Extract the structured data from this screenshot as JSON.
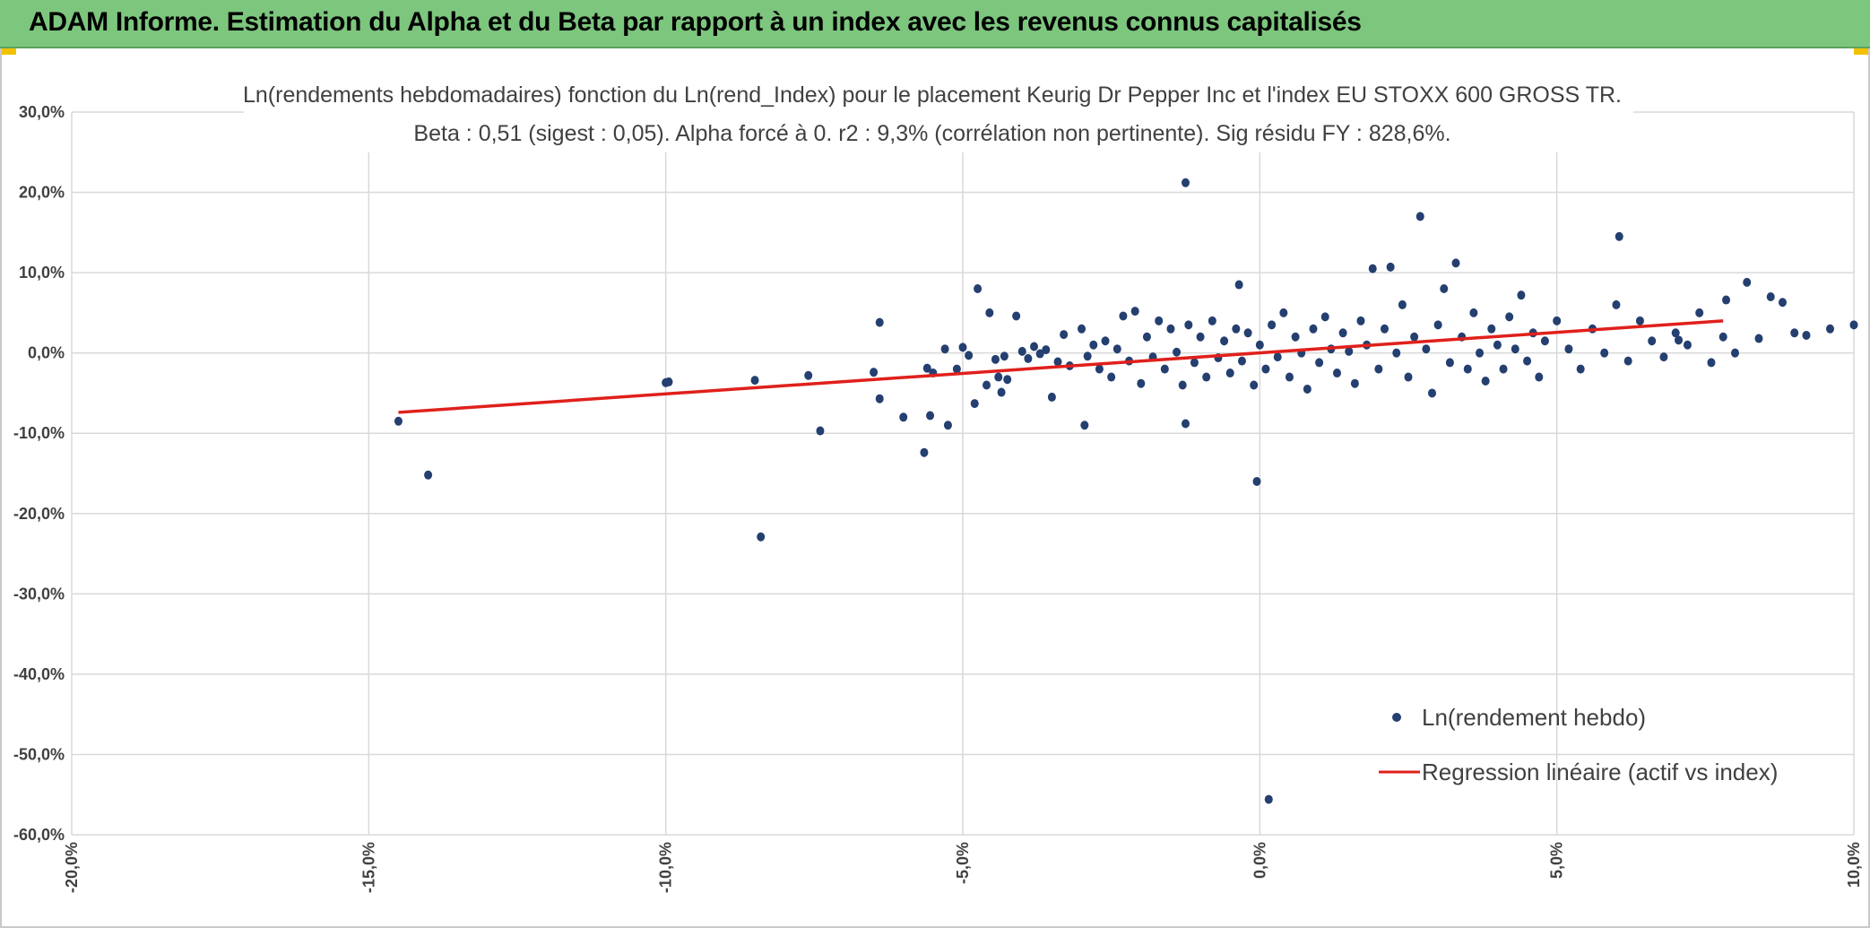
{
  "banner": {
    "title": "ADAM Informe. Estimation du Alpha et du Beta par rapport à un index avec les revenus connus capitalisés",
    "background": "#7dc67e",
    "accent": "#f2c200"
  },
  "chart_data": {
    "type": "scatter",
    "title_line1": "Ln(rendements hebdomadaires) fonction du Ln(rend_Index) pour le placement Keurig Dr Pepper Inc et l'index EU STOXX 600 GROSS TR.",
    "title_line2": "Beta : 0,51 (sigest : 0,05). Alpha forcé à 0. r2 : 9,3% (corrélation non pertinente). Sig résidu FY : 828,6%.",
    "xlim": [
      -0.2,
      0.1
    ],
    "ylim": [
      -0.6,
      0.3
    ],
    "x_ticks": [
      "-20,0%",
      "-15,0%",
      "-10,0%",
      "-5,0%",
      "0,0%",
      "5,0%",
      "10,0%"
    ],
    "y_ticks": [
      "30,0%",
      "20,0%",
      "10,0%",
      "0,0%",
      "-10,0%",
      "-20,0%",
      "-30,0%",
      "-40,0%",
      "-50,0%",
      "-60,0%"
    ],
    "grid": true,
    "legend_position": "bottom-right",
    "series": [
      {
        "name": "Ln(rendement hebdo)",
        "type": "scatter",
        "color": "#243f70",
        "points": [
          [
            -0.145,
            -0.085
          ],
          [
            -0.14,
            -0.152
          ],
          [
            -0.1,
            -0.037
          ],
          [
            -0.0995,
            -0.036
          ],
          [
            -0.085,
            -0.034
          ],
          [
            -0.084,
            -0.229
          ],
          [
            -0.076,
            -0.028
          ],
          [
            -0.074,
            -0.097
          ],
          [
            -0.065,
            -0.024
          ],
          [
            -0.064,
            0.038
          ],
          [
            -0.064,
            -0.057
          ],
          [
            -0.06,
            -0.08
          ],
          [
            -0.0565,
            -0.124
          ],
          [
            -0.056,
            -0.019
          ],
          [
            -0.0555,
            -0.078
          ],
          [
            -0.055,
            -0.025
          ],
          [
            -0.053,
            0.005
          ],
          [
            -0.0525,
            -0.09
          ],
          [
            -0.051,
            -0.02
          ],
          [
            -0.05,
            0.007
          ],
          [
            -0.049,
            -0.003
          ],
          [
            -0.048,
            -0.063
          ],
          [
            -0.0475,
            0.08
          ],
          [
            -0.046,
            -0.04
          ],
          [
            -0.0455,
            0.05
          ],
          [
            -0.044,
            -0.03
          ],
          [
            -0.0445,
            -0.008
          ],
          [
            -0.0435,
            -0.049
          ],
          [
            -0.043,
            -0.004
          ],
          [
            -0.0425,
            -0.033
          ],
          [
            -0.041,
            0.046
          ],
          [
            -0.04,
            0.002
          ],
          [
            -0.039,
            -0.007
          ],
          [
            -0.038,
            0.008
          ],
          [
            -0.037,
            -0.001
          ],
          [
            -0.036,
            0.004
          ],
          [
            -0.035,
            -0.055
          ],
          [
            -0.034,
            -0.011
          ],
          [
            -0.033,
            0.023
          ],
          [
            -0.032,
            -0.016
          ],
          [
            -0.03,
            0.03
          ],
          [
            -0.0295,
            -0.09
          ],
          [
            -0.029,
            -0.004
          ],
          [
            -0.028,
            0.01
          ],
          [
            -0.027,
            -0.02
          ],
          [
            -0.026,
            0.015
          ],
          [
            -0.025,
            -0.03
          ],
          [
            -0.024,
            0.005
          ],
          [
            -0.023,
            0.046
          ],
          [
            -0.022,
            -0.01
          ],
          [
            -0.021,
            0.052
          ],
          [
            -0.02,
            -0.038
          ],
          [
            -0.019,
            0.02
          ],
          [
            -0.018,
            -0.005
          ],
          [
            -0.017,
            0.04
          ],
          [
            -0.016,
            -0.02
          ],
          [
            -0.015,
            0.03
          ],
          [
            -0.014,
            0.001
          ],
          [
            -0.013,
            -0.04
          ],
          [
            -0.012,
            0.035
          ],
          [
            -0.0125,
            0.212
          ],
          [
            -0.0125,
            -0.088
          ],
          [
            -0.011,
            -0.012
          ],
          [
            -0.01,
            0.02
          ],
          [
            -0.009,
            -0.03
          ],
          [
            -0.008,
            0.04
          ],
          [
            -0.007,
            -0.006
          ],
          [
            -0.006,
            0.015
          ],
          [
            -0.005,
            -0.025
          ],
          [
            -0.004,
            0.03
          ],
          [
            -0.0035,
            0.085
          ],
          [
            -0.003,
            -0.01
          ],
          [
            -0.002,
            0.025
          ],
          [
            -0.001,
            -0.04
          ],
          [
            -0.0005,
            -0.16
          ],
          [
            0.0,
            0.01
          ],
          [
            0.001,
            -0.02
          ],
          [
            0.002,
            0.035
          ],
          [
            0.003,
            -0.005
          ],
          [
            0.004,
            0.05
          ],
          [
            0.005,
            -0.03
          ],
          [
            0.006,
            0.02
          ],
          [
            0.007,
            0.0
          ],
          [
            0.008,
            -0.045
          ],
          [
            0.009,
            0.03
          ],
          [
            0.01,
            -0.012
          ],
          [
            0.011,
            0.045
          ],
          [
            0.012,
            0.005
          ],
          [
            0.013,
            -0.025
          ],
          [
            0.014,
            0.025
          ],
          [
            0.015,
            0.002
          ],
          [
            0.016,
            -0.038
          ],
          [
            0.017,
            0.04
          ],
          [
            0.018,
            0.01
          ],
          [
            0.019,
            0.105
          ],
          [
            0.02,
            -0.02
          ],
          [
            0.021,
            0.03
          ],
          [
            0.022,
            0.107
          ],
          [
            0.023,
            0.0
          ],
          [
            0.024,
            0.06
          ],
          [
            0.025,
            -0.03
          ],
          [
            0.026,
            0.02
          ],
          [
            0.027,
            0.17
          ],
          [
            0.028,
            0.005
          ],
          [
            0.029,
            -0.05
          ],
          [
            0.03,
            0.035
          ],
          [
            0.031,
            0.08
          ],
          [
            0.032,
            -0.012
          ],
          [
            0.033,
            0.112
          ],
          [
            0.034,
            0.02
          ],
          [
            0.035,
            -0.02
          ],
          [
            0.036,
            0.05
          ],
          [
            0.037,
            0.0
          ],
          [
            0.038,
            -0.035
          ],
          [
            0.039,
            0.03
          ],
          [
            0.04,
            0.01
          ],
          [
            0.041,
            -0.02
          ],
          [
            0.042,
            0.045
          ],
          [
            0.043,
            0.005
          ],
          [
            0.044,
            0.072
          ],
          [
            0.045,
            -0.01
          ],
          [
            0.046,
            0.025
          ],
          [
            0.047,
            -0.03
          ],
          [
            0.048,
            0.015
          ],
          [
            0.05,
            0.04
          ],
          [
            0.052,
            0.005
          ],
          [
            0.054,
            -0.02
          ],
          [
            0.056,
            0.03
          ],
          [
            0.058,
            0.0
          ],
          [
            0.06,
            0.06
          ],
          [
            0.062,
            -0.01
          ],
          [
            0.064,
            0.04
          ],
          [
            0.066,
            0.015
          ],
          [
            0.068,
            -0.005
          ],
          [
            0.07,
            0.025
          ],
          [
            0.072,
            0.01
          ],
          [
            0.074,
            0.05
          ],
          [
            0.076,
            -0.012
          ],
          [
            0.078,
            0.02
          ],
          [
            0.08,
            0.0
          ],
          [
            0.082,
            0.088
          ],
          [
            0.084,
            0.018
          ],
          [
            0.086,
            0.07
          ],
          [
            0.088,
            0.063
          ],
          [
            0.09,
            0.025
          ],
          [
            0.092,
            0.022
          ],
          [
            0.096,
            0.03
          ],
          [
            0.1,
            0.035
          ],
          [
            0.104,
            0.04
          ],
          [
            0.0605,
            0.145
          ],
          [
            0.0705,
            0.016
          ],
          [
            0.0785,
            0.066
          ],
          [
            0.0015,
            -0.556
          ]
        ]
      },
      {
        "name": "Regression linéaire (actif vs index)",
        "type": "line",
        "color": "#e0201b",
        "x": [
          -0.145,
          0.078
        ],
        "y": [
          -0.074,
          0.04
        ]
      }
    ]
  }
}
